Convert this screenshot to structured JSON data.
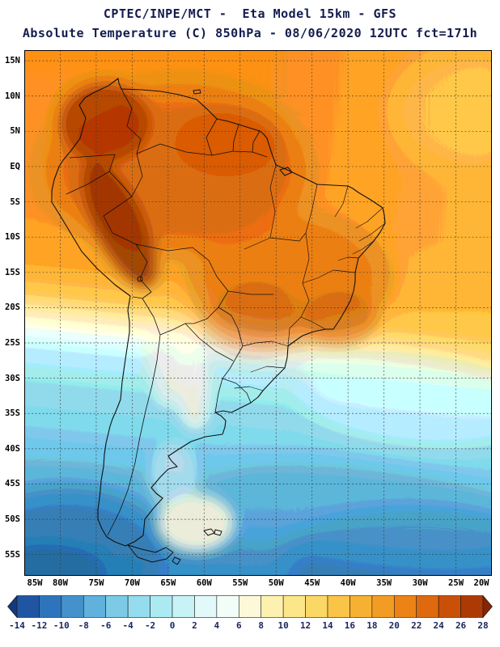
{
  "header": {
    "title_line1": "CPTEC/INPE/MCT -  Eta Model 15km - GFS",
    "title_line2": "Absolute Temperature (C) 850hPa - 08/06/2020 12UTC fct=171h"
  },
  "map": {
    "lat_labels": [
      "15N",
      "10N",
      "5N",
      "EQ",
      "5S",
      "10S",
      "15S",
      "20S",
      "25S",
      "30S",
      "35S",
      "40S",
      "45S",
      "50S",
      "55S"
    ],
    "lon_labels": [
      "85W",
      "80W",
      "75W",
      "70W",
      "65W",
      "60W",
      "55W",
      "50W",
      "45W",
      "40W",
      "35W",
      "30W",
      "25W",
      "20W"
    ],
    "grid_style": "dashed"
  },
  "colorbar": {
    "tick_labels": [
      "-14",
      "-12",
      "-10",
      "-8",
      "-6",
      "-4",
      "-2",
      "0",
      "2",
      "4",
      "6",
      "8",
      "10",
      "12",
      "14",
      "16",
      "18",
      "20",
      "22",
      "24",
      "26",
      "28"
    ],
    "colors": [
      "#16397b",
      "#1f55a2",
      "#2e74bd",
      "#4591cb",
      "#60b1dc",
      "#7ccae6",
      "#94dcee",
      "#aceaf2",
      "#c7f2f6",
      "#e1f9f8",
      "#f1fdf6",
      "#fdf8d8",
      "#fdf1af",
      "#fce68a",
      "#fbd765",
      "#f9c447",
      "#f7b132",
      "#f39c23",
      "#ed8316",
      "#df690f",
      "#ca5009",
      "#ad3a05",
      "#862503"
    ],
    "units": "C"
  },
  "chart_data": {
    "type": "heatmap",
    "title": "Absolute Temperature (C) 850hPa",
    "model": "Eta Model 15km - GFS",
    "valid": "08/06/2020 12UTC fct=171h",
    "scale_min": -14,
    "scale_max": 28,
    "scale_step": 2,
    "field_estimates": [
      {
        "region": "Andes (Colombia/Peru)",
        "temp_c": "24 to 28"
      },
      {
        "region": "Amazon basin",
        "temp_c": "20 to 24"
      },
      {
        "region": "Central Brazil",
        "temp_c": "18 to 22"
      },
      {
        "region": "Tropical Atlantic (NE)",
        "temp_c": "14 to 18"
      },
      {
        "region": "Paraguay / SE Brazil",
        "temp_c": "8 to 14"
      },
      {
        "region": "La Plata / S Brazil",
        "temp_c": "0 to 6"
      },
      {
        "region": "Patagonia / Southern Ocean",
        "temp_c": "-8 to 0"
      }
    ]
  }
}
